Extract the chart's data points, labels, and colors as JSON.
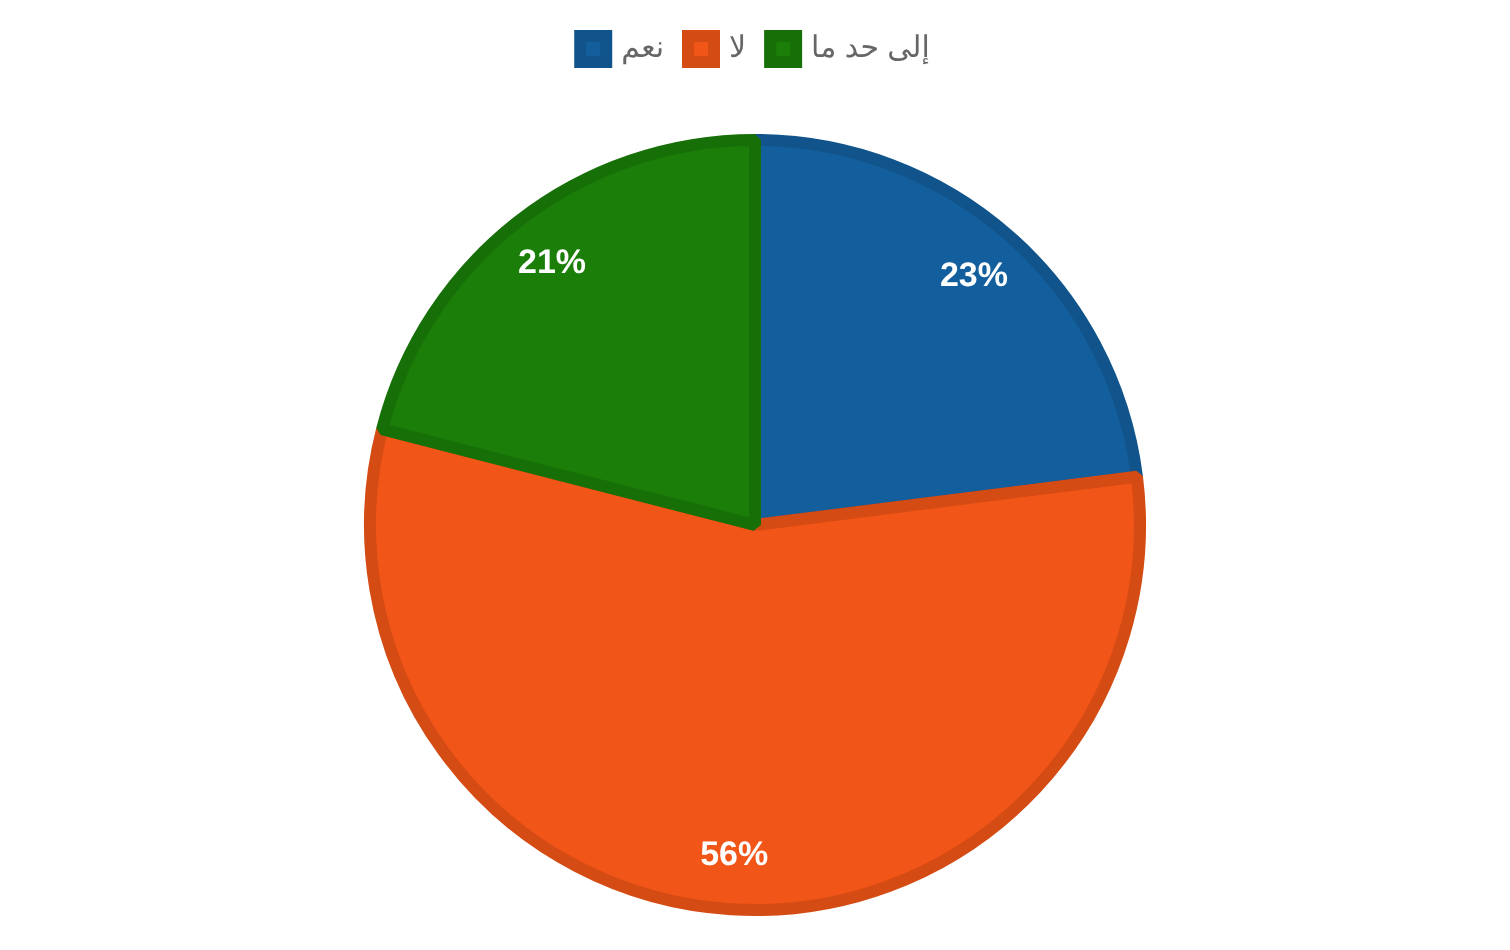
{
  "chart_data": {
    "type": "pie",
    "categories": [
      "نعم",
      "لا",
      "إلى حد ما"
    ],
    "values": [
      23,
      56,
      21
    ],
    "colors": [
      "#135f9e",
      "#f15517",
      "#1a7e09"
    ],
    "value_labels": [
      "23%",
      "56%",
      "21%"
    ],
    "legend": "top"
  }
}
